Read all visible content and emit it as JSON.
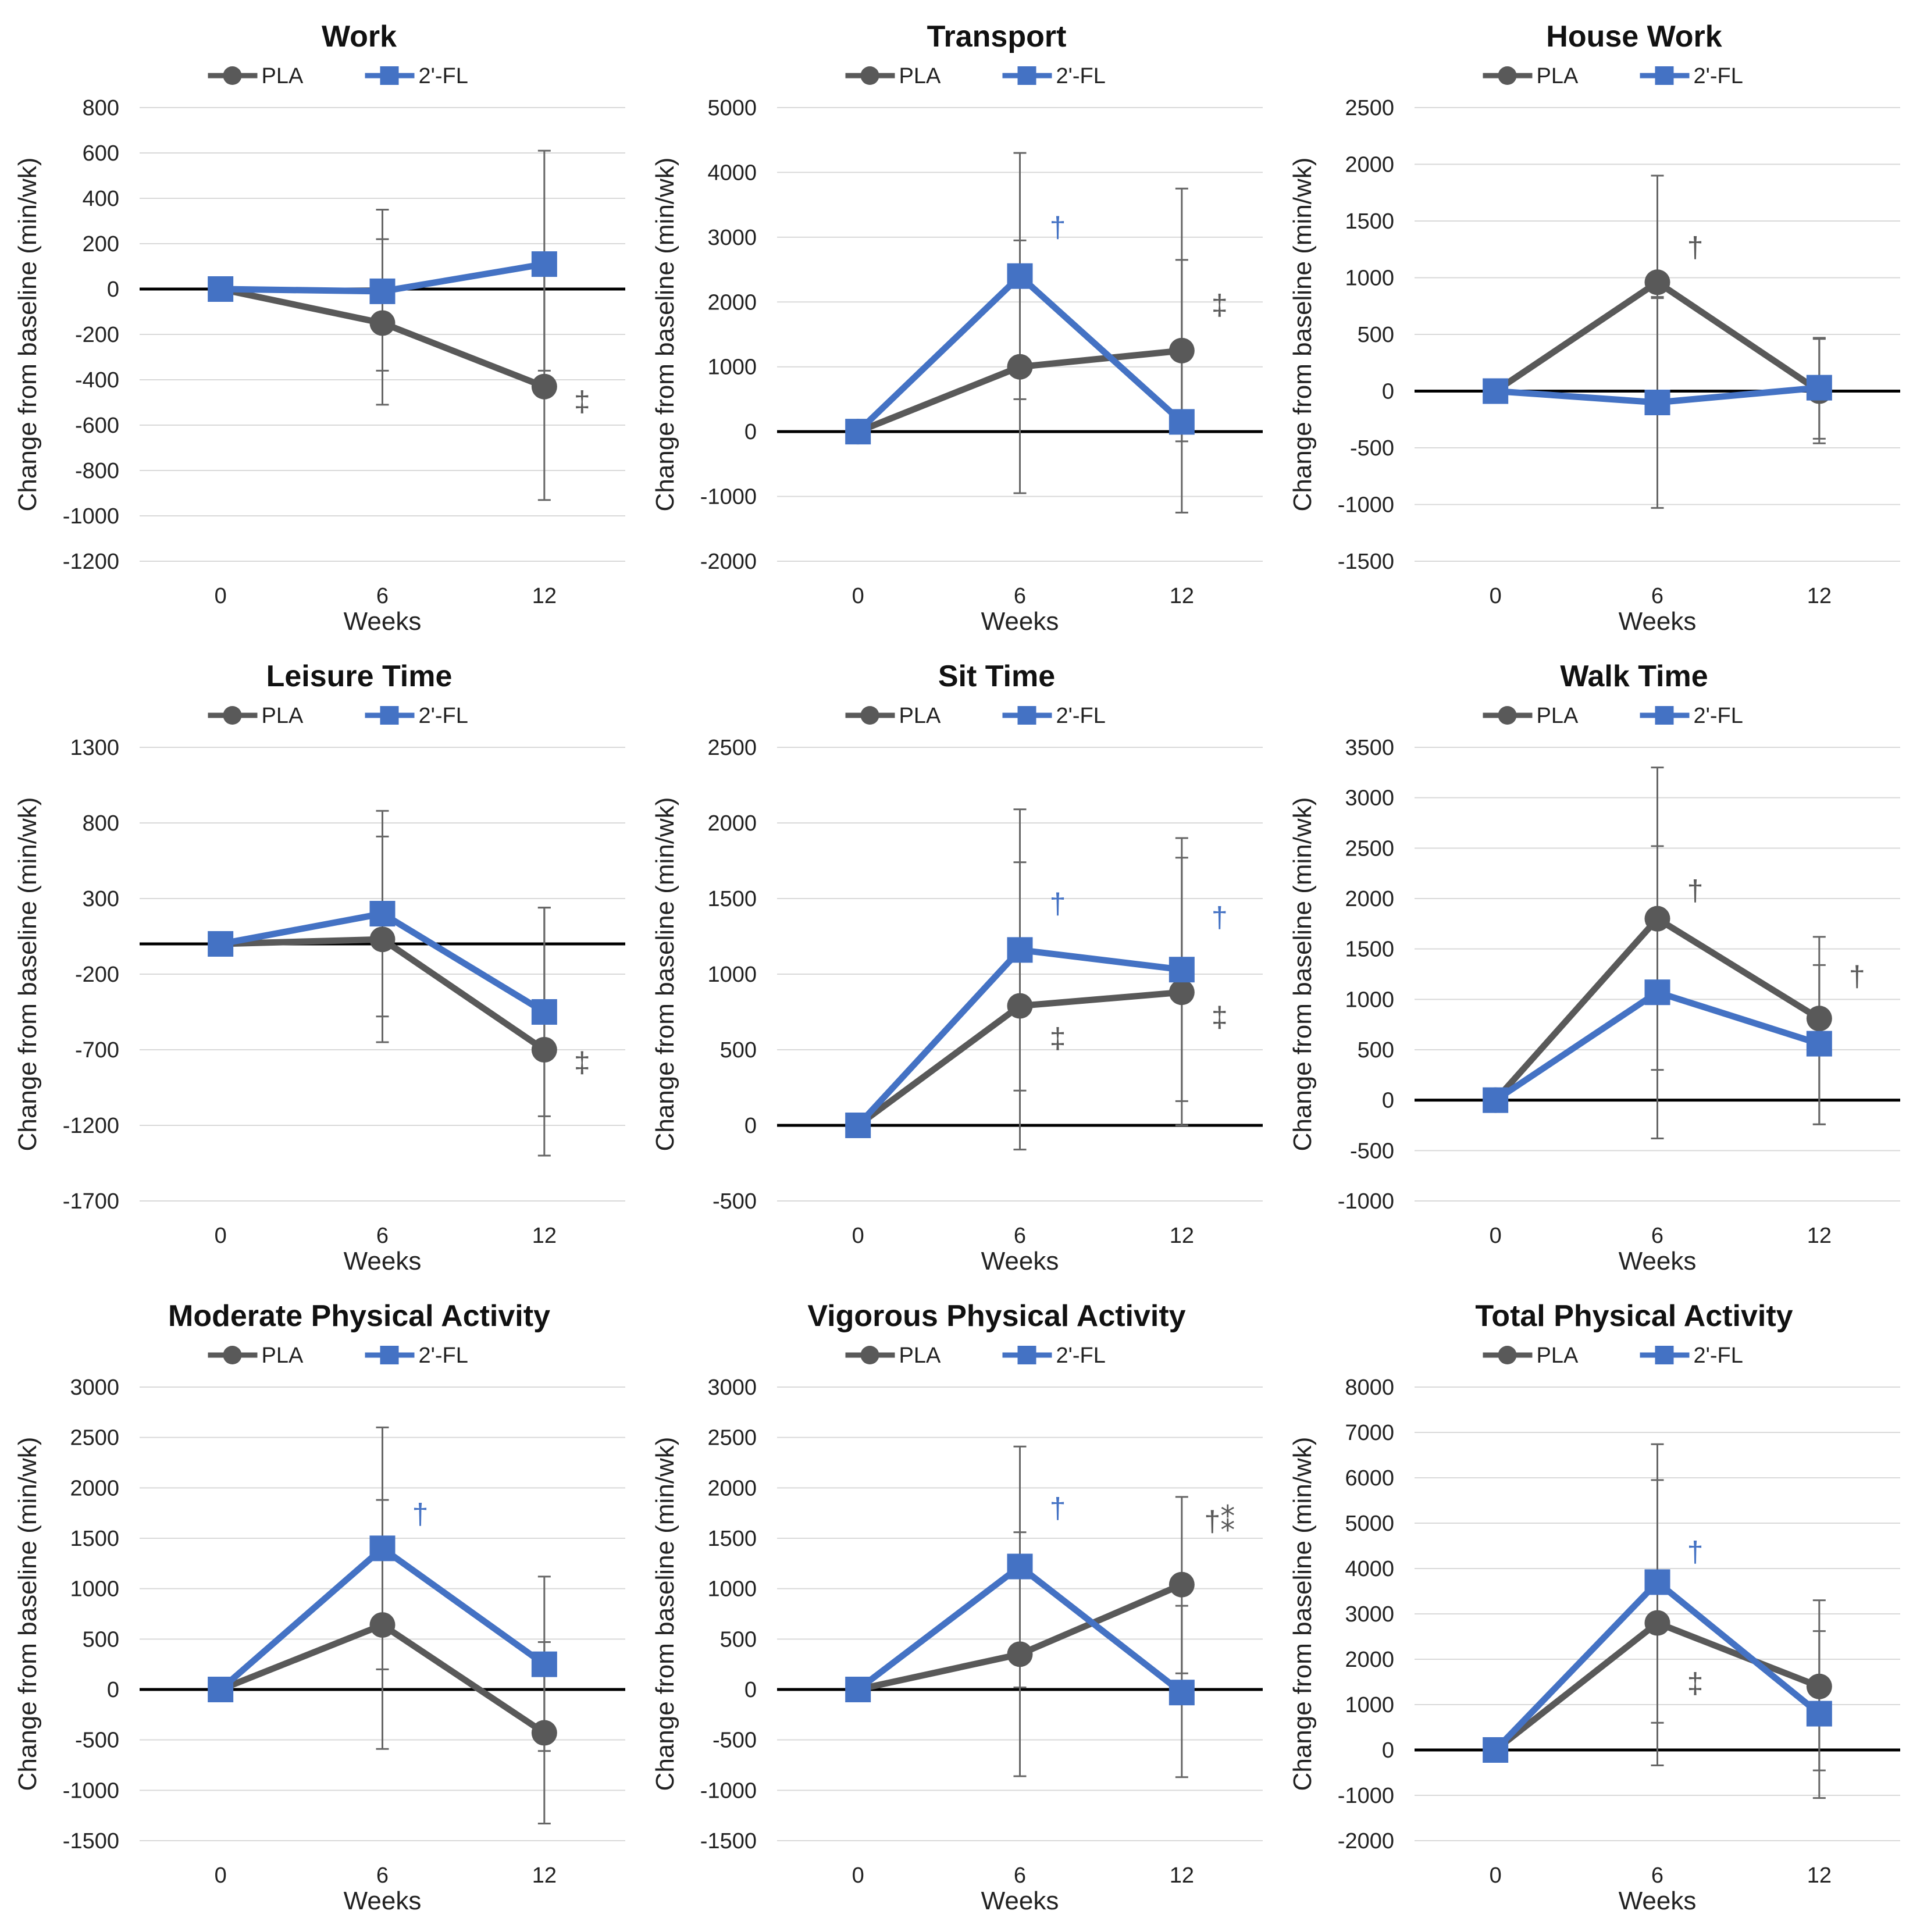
{
  "colors": {
    "PLA": "#595959",
    "2'-FL": "#4472c4",
    "sig_blue": "#4472c4",
    "sig_grey": "#595959"
  },
  "chart_data": [
    {
      "type": "line",
      "title": "Work",
      "categories": [
        "0",
        "6",
        "12"
      ],
      "xlabel": "Weeks",
      "ylabel": "Change from baseline (min/wk)",
      "ylim": [
        -1200,
        800
      ],
      "ystep": 200,
      "legend": "top",
      "series": [
        {
          "name": "PLA",
          "values": [
            0,
            -150,
            -430
          ],
          "err_low": [
            0,
            -510,
            -930
          ],
          "err_high": [
            0,
            220,
            80
          ]
        },
        {
          "name": "2'-FL",
          "values": [
            0,
            -10,
            110
          ],
          "err_low": [
            0,
            -360,
            -360
          ],
          "err_high": [
            0,
            350,
            610
          ]
        }
      ],
      "annotations": [
        {
          "text": "‡",
          "x": 2,
          "y": -540,
          "color": "grey"
        }
      ]
    },
    {
      "type": "line",
      "title": "Transport",
      "categories": [
        "0",
        "6",
        "12"
      ],
      "xlabel": "Weeks",
      "ylabel": "Change from baseline (min/wk)",
      "ylim": [
        -2000,
        5000
      ],
      "ystep": 1000,
      "legend": "top",
      "series": [
        {
          "name": "PLA",
          "values": [
            0,
            1000,
            1250
          ],
          "err_low": [
            0,
            -950,
            -1250
          ],
          "err_high": [
            0,
            2950,
            3750
          ]
        },
        {
          "name": "2'-FL",
          "values": [
            0,
            2400,
            150
          ],
          "err_low": [
            0,
            500,
            -150
          ],
          "err_high": [
            0,
            4300,
            2650
          ]
        }
      ],
      "annotations": [
        {
          "text": "†",
          "x": 1,
          "y": 3000,
          "color": "blue"
        },
        {
          "text": "‡",
          "x": 2,
          "y": 1800,
          "color": "grey"
        }
      ]
    },
    {
      "type": "line",
      "title": "House Work",
      "categories": [
        "0",
        "6",
        "12"
      ],
      "xlabel": "Weeks",
      "ylabel": "Change from baseline (min/wk)",
      "ylim": [
        -1500,
        2500
      ],
      "ystep": 500,
      "legend": "top",
      "series": [
        {
          "name": "PLA",
          "values": [
            0,
            960,
            0
          ],
          "err_low": [
            0,
            820,
            -420
          ],
          "err_high": [
            0,
            1900,
            460
          ]
        },
        {
          "name": "2'-FL",
          "values": [
            0,
            -100,
            30
          ],
          "err_low": [
            0,
            -1030,
            -460
          ],
          "err_high": [
            0,
            830,
            470
          ]
        }
      ],
      "annotations": [
        {
          "text": "†",
          "x": 1,
          "y": 1180,
          "color": "grey"
        }
      ]
    },
    {
      "type": "line",
      "title": "Leisure Time",
      "categories": [
        "0",
        "6",
        "12"
      ],
      "xlabel": "Weeks",
      "ylabel": "Change from baseline (min/wk)",
      "ylim": [
        -1700,
        1300
      ],
      "ystep": 500,
      "legend": "top",
      "series": [
        {
          "name": "PLA",
          "values": [
            0,
            30,
            -700
          ],
          "err_low": [
            0,
            -650,
            -1400
          ],
          "err_high": [
            0,
            710,
            240
          ]
        },
        {
          "name": "2'-FL",
          "values": [
            0,
            200,
            -450
          ],
          "err_low": [
            0,
            -480,
            -1140
          ],
          "err_high": [
            0,
            880,
            240
          ]
        }
      ],
      "annotations": [
        {
          "text": "‡",
          "x": 2,
          "y": -850,
          "color": "grey"
        }
      ]
    },
    {
      "type": "line",
      "title": "Sit Time",
      "categories": [
        "0",
        "6",
        "12"
      ],
      "xlabel": "Weeks",
      "ylabel": "Change from baseline (min/wk)",
      "ylim": [
        -500,
        2500
      ],
      "ystep": 500,
      "legend": "top",
      "series": [
        {
          "name": "PLA",
          "values": [
            0,
            790,
            880
          ],
          "err_low": [
            0,
            -160,
            0
          ],
          "err_high": [
            0,
            1740,
            1770
          ]
        },
        {
          "name": "2'-FL",
          "values": [
            0,
            1160,
            1030
          ],
          "err_low": [
            0,
            230,
            160
          ],
          "err_high": [
            0,
            2090,
            1900
          ]
        }
      ],
      "annotations": [
        {
          "text": "†",
          "x": 1,
          "y": 1400,
          "color": "blue"
        },
        {
          "text": "‡",
          "x": 1,
          "y": 510,
          "color": "grey"
        },
        {
          "text": "†",
          "x": 2,
          "y": 1310,
          "color": "blue"
        },
        {
          "text": "‡",
          "x": 2,
          "y": 650,
          "color": "grey"
        }
      ]
    },
    {
      "type": "line",
      "title": "Walk Time",
      "categories": [
        "0",
        "6",
        "12"
      ],
      "xlabel": "Weeks",
      "ylabel": "Change from baseline (min/wk)",
      "ylim": [
        -1000,
        3500
      ],
      "ystep": 500,
      "legend": "top",
      "series": [
        {
          "name": "PLA",
          "values": [
            0,
            1800,
            810
          ],
          "err_low": [
            0,
            300,
            -240
          ],
          "err_high": [
            0,
            3300,
            1340
          ]
        },
        {
          "name": "2'-FL",
          "values": [
            0,
            1070,
            560
          ],
          "err_low": [
            0,
            -380,
            -240
          ],
          "err_high": [
            0,
            2520,
            1620
          ]
        }
      ],
      "annotations": [
        {
          "text": "†",
          "x": 1,
          "y": 1980,
          "color": "grey"
        },
        {
          "text": "†",
          "x": 2,
          "y": 1130,
          "color": "grey"
        }
      ]
    },
    {
      "type": "line",
      "title": "Moderate Physical Activity",
      "categories": [
        "0",
        "6",
        "12"
      ],
      "xlabel": "Weeks",
      "ylabel": "Change from baseline (min/wk)",
      "ylim": [
        -1500,
        3000
      ],
      "ystep": 500,
      "legend": "top",
      "series": [
        {
          "name": "PLA",
          "values": [
            0,
            640,
            -430
          ],
          "err_low": [
            0,
            -590,
            -1330
          ],
          "err_high": [
            0,
            1880,
            470
          ]
        },
        {
          "name": "2'-FL",
          "values": [
            0,
            1400,
            250
          ],
          "err_low": [
            0,
            200,
            -610
          ],
          "err_high": [
            0,
            2600,
            1120
          ]
        }
      ],
      "annotations": [
        {
          "text": "†",
          "x": 1,
          "y": 1640,
          "color": "blue"
        }
      ]
    },
    {
      "type": "line",
      "title": "Vigorous Physical Activity",
      "categories": [
        "0",
        "6",
        "12"
      ],
      "xlabel": "Weeks",
      "ylabel": "Change from baseline (min/wk)",
      "ylim": [
        -1500,
        3000
      ],
      "ystep": 500,
      "legend": "top",
      "series": [
        {
          "name": "PLA",
          "values": [
            0,
            350,
            1040
          ],
          "err_low": [
            0,
            -860,
            160
          ],
          "err_high": [
            0,
            1560,
            1910
          ]
        },
        {
          "name": "2'-FL",
          "values": [
            0,
            1220,
            -30
          ],
          "err_low": [
            0,
            20,
            -870
          ],
          "err_high": [
            0,
            2410,
            830
          ]
        }
      ],
      "annotations": [
        {
          "text": "†",
          "x": 1,
          "y": 1700,
          "color": "blue"
        },
        {
          "text": "†⁑",
          "x": 2,
          "y": 1570,
          "color": "grey"
        }
      ]
    },
    {
      "type": "line",
      "title": "Total Physical Activity",
      "categories": [
        "0",
        "6",
        "12"
      ],
      "xlabel": "Weeks",
      "ylabel": "Change from baseline (min/wk)",
      "ylim": [
        -2000,
        8000
      ],
      "ystep": 1000,
      "legend": "top",
      "series": [
        {
          "name": "PLA",
          "values": [
            0,
            2800,
            1400
          ],
          "err_low": [
            0,
            -340,
            -450
          ],
          "err_high": [
            0,
            5950,
            3300
          ]
        },
        {
          "name": "2'-FL",
          "values": [
            0,
            3700,
            800
          ],
          "err_low": [
            0,
            600,
            -1060
          ],
          "err_high": [
            0,
            6740,
            2620
          ]
        }
      ],
      "annotations": [
        {
          "text": "†",
          "x": 1,
          "y": 4150,
          "color": "blue"
        },
        {
          "text": "‡",
          "x": 1,
          "y": 1250,
          "color": "grey"
        }
      ]
    }
  ]
}
